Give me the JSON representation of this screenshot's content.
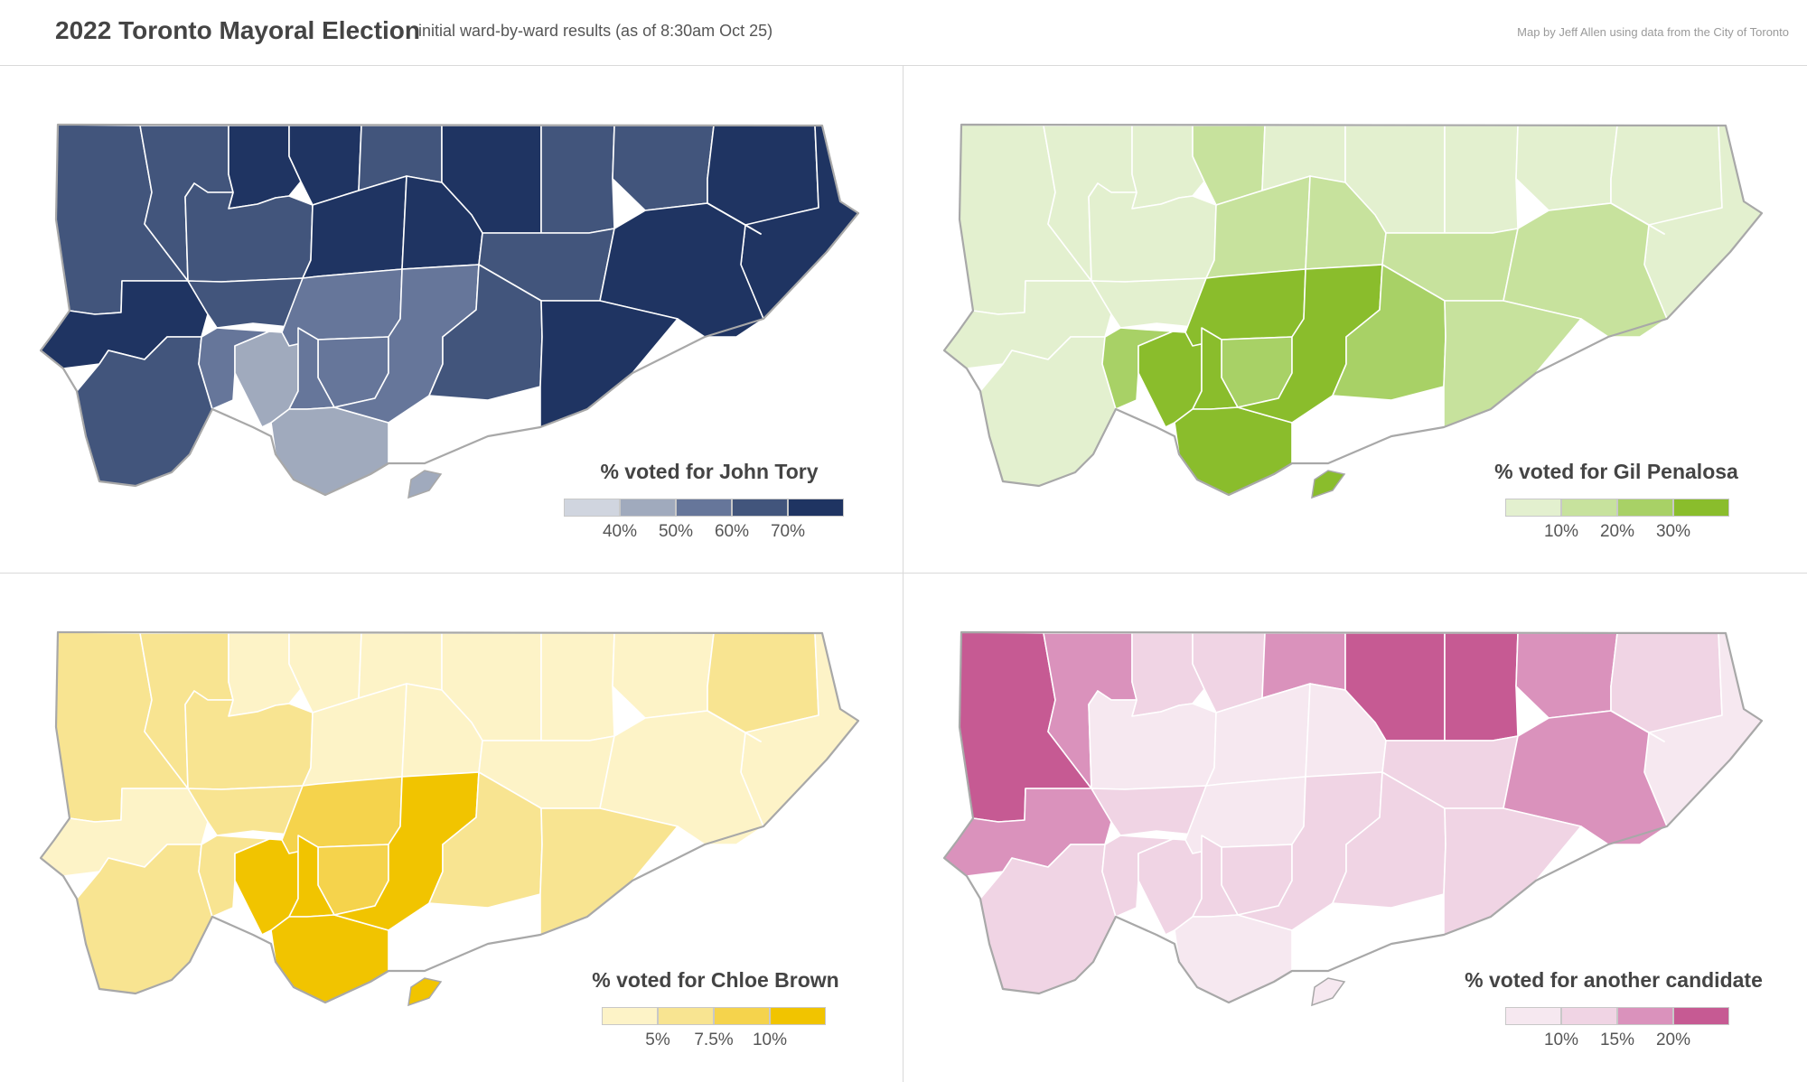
{
  "header": {
    "title": "2022 Toronto Mayoral Election",
    "subtitle": "initial ward-by-ward results (as of 8:30am Oct 25)",
    "credit": "Map by Jeff Allen using data from the City of Toronto"
  },
  "panels": [
    {
      "legend_title": "% voted for John Tory",
      "legend_colors": [
        "#d0d5df",
        "#a0aabd",
        "#66769a",
        "#42557c",
        "#1f3462"
      ],
      "legend_ticks": [
        "40%",
        "50%",
        "60%",
        "70%"
      ],
      "ward_classes": [
        3,
        3,
        4,
        4,
        3,
        4,
        3,
        3,
        4,
        4,
        3,
        4,
        4,
        3,
        4,
        4,
        4,
        3,
        3,
        2,
        1,
        2,
        2,
        2,
        1,
        2,
        3,
        4
      ]
    },
    {
      "legend_title": "% voted for Gil Penalosa",
      "legend_colors": [
        "#e3f0cf",
        "#c7e29d",
        "#a8d166",
        "#8abd2c"
      ],
      "legend_ticks": [
        "10%",
        "20%",
        "30%"
      ],
      "ward_classes": [
        0,
        0,
        0,
        1,
        0,
        0,
        0,
        0,
        0,
        0,
        0,
        1,
        1,
        1,
        1,
        1,
        0,
        0,
        0,
        2,
        3,
        3,
        2,
        3,
        3,
        3,
        2,
        1
      ]
    },
    {
      "legend_title": "% voted for Chloe Brown",
      "legend_colors": [
        "#fdf3c7",
        "#f8e491",
        "#f5d34c",
        "#f1c400"
      ],
      "legend_ticks": [
        "5%",
        "7.5%",
        "10%"
      ],
      "ward_classes": [
        1,
        1,
        0,
        0,
        0,
        0,
        0,
        0,
        1,
        0,
        1,
        0,
        0,
        0,
        0,
        1,
        0,
        1,
        1,
        1,
        3,
        2,
        2,
        3,
        3,
        3,
        1,
        1
      ]
    },
    {
      "legend_title": "% voted for another candidate",
      "legend_colors": [
        "#f6e8f0",
        "#f0d4e4",
        "#da92bc",
        "#c65a93"
      ],
      "legend_ticks": [
        "10%",
        "15%",
        "20%"
      ],
      "ward_classes": [
        3,
        2,
        1,
        1,
        2,
        3,
        3,
        2,
        1,
        0,
        0,
        0,
        0,
        1,
        2,
        2,
        2,
        1,
        1,
        1,
        1,
        0,
        1,
        1,
        0,
        1,
        1,
        1
      ]
    }
  ]
}
